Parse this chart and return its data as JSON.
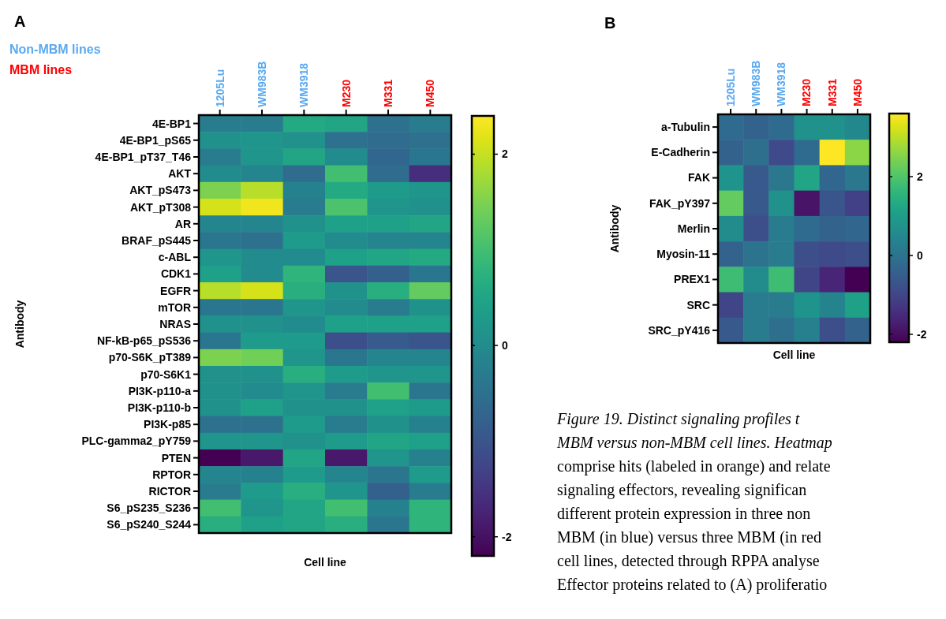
{
  "chart_data": [
    {
      "type": "heatmap",
      "title": "A",
      "xlabel": "Cell line",
      "ylabel": "Antibody",
      "annotations": [
        "Non-MBM lines",
        "MBM lines"
      ],
      "categories": [
        "1205Lu",
        "WM983B",
        "WM3918",
        "M230",
        "M331",
        "M450"
      ],
      "y_categories": [
        "4E-BP1",
        "4E-BP1_pS65",
        "4E-BP1_pT37_T46",
        "AKT",
        "AKT_pS473",
        "AKT_pT308",
        "AR",
        "BRAF_pS445",
        "c-ABL",
        "CDK1",
        "EGFR",
        "mTOR",
        "NRAS",
        "NF-kB-p65_pS536",
        "p70-S6K_pT389",
        "p70-S6K1",
        "PI3K-p110-a",
        "PI3K-p110-b",
        "PI3K-p85",
        "PLC-gamma2_pY759",
        "PTEN",
        "RPTOR",
        "RICTOR",
        "S6_pS235_S236",
        "S6_pS240_S244"
      ],
      "cells": [
        [
          -0.3,
          -0.3,
          0.6,
          0.5,
          -0.5,
          -0.3
        ],
        [
          0.1,
          0.2,
          0.1,
          -0.5,
          -0.6,
          -0.5
        ],
        [
          -0.3,
          0.2,
          0.5,
          0,
          -0.7,
          -0.4
        ],
        [
          0,
          -0.1,
          -0.6,
          1.0,
          -0.6,
          -1.6
        ],
        [
          1.5,
          1.9,
          -0.2,
          0.6,
          0.3,
          0.2
        ],
        [
          2.1,
          2.3,
          -0.3,
          1.1,
          0.2,
          0.1
        ],
        [
          -0.1,
          -0.1,
          0.1,
          0.4,
          0.4,
          0.5
        ],
        [
          -0.4,
          -0.5,
          0.3,
          0,
          -0.1,
          -0.1
        ],
        [
          0.2,
          0,
          0,
          0.4,
          0.5,
          0.6
        ],
        [
          0.4,
          0,
          0.8,
          -1.0,
          -0.8,
          -0.4
        ],
        [
          1.9,
          2.1,
          0.7,
          0.1,
          0.7,
          1.3
        ],
        [
          -0.4,
          -0.4,
          0.2,
          0,
          -0.3,
          0.1
        ],
        [
          0.1,
          0.1,
          0,
          0.4,
          0.4,
          0.4
        ],
        [
          -0.4,
          0.3,
          0.3,
          -1.1,
          -0.9,
          -1.0
        ],
        [
          1.5,
          1.4,
          0.2,
          -0.4,
          -0.1,
          -0.1
        ],
        [
          0.1,
          0.1,
          0.7,
          0.3,
          0.2,
          0.2
        ],
        [
          0.1,
          0,
          0.2,
          -0.3,
          1.0,
          -0.4
        ],
        [
          0.1,
          0.4,
          0.1,
          0.1,
          0.4,
          0.3
        ],
        [
          -0.5,
          -0.5,
          0.3,
          -0.3,
          0.1,
          -0.2
        ],
        [
          0.2,
          0.2,
          0.1,
          0.3,
          0.5,
          0.4
        ],
        [
          -2.2,
          -1.9,
          0.5,
          -1.9,
          0.2,
          -0.2
        ],
        [
          -0.1,
          -0.2,
          0.3,
          -0.1,
          -0.4,
          0.3
        ],
        [
          -0.3,
          0.3,
          0.7,
          0.2,
          -0.8,
          -0.3
        ],
        [
          1.0,
          0.2,
          0.5,
          1.0,
          -0.2,
          0.8
        ],
        [
          0.7,
          0.4,
          0.5,
          0.7,
          -0.4,
          0.8
        ]
      ],
      "clim": [
        -2.2,
        2.4
      ],
      "cticks": [
        2,
        0,
        -2
      ]
    },
    {
      "type": "heatmap",
      "title": "B",
      "xlabel": "Cell line",
      "ylabel": "Antibody",
      "annotations": [
        "Figure 19. Distinct signaling profiles t",
        "MBM versus non-MBM cell lines. Heatmap",
        "comprise hits (labeled in orange) and relate",
        "signaling effectors, revealing significan",
        "different protein expression in three non",
        "MBM (in blue) versus three MBM (in red",
        "cell lines, detected through RPPA analyse",
        "Effector proteins related to (A) proliferatio"
      ],
      "categories": [
        "1205Lu",
        "WM983B",
        "WM3918",
        "M230",
        "M331",
        "M450"
      ],
      "y_categories": [
        "a-Tubulin",
        "E-Cadherin",
        "FAK",
        "FAK_pY397",
        "Merlin",
        "Myosin-11",
        "PREX1",
        "SRC",
        "SRC_pY416"
      ],
      "cells": [
        [
          -0.2,
          -0.4,
          -0.2,
          0.7,
          0.7,
          0.5
        ],
        [
          -0.4,
          -0.1,
          -0.9,
          -0.2,
          3.6,
          2.6
        ],
        [
          0.8,
          -0.6,
          0.1,
          1.2,
          -0.3,
          0.1
        ],
        [
          2.2,
          -0.6,
          0.7,
          -1.9,
          -0.7,
          -1.1
        ],
        [
          0.6,
          -0.8,
          0.2,
          -0.2,
          -0.4,
          -0.3
        ],
        [
          -0.4,
          0,
          0.2,
          -0.8,
          -0.9,
          -0.8
        ],
        [
          1.8,
          0.6,
          1.8,
          -1.0,
          -1.6,
          -2.2
        ],
        [
          -1.0,
          0.2,
          0.2,
          0.8,
          0.4,
          1.1
        ],
        [
          -0.6,
          0.2,
          -0.1,
          0.3,
          -0.8,
          -0.4
        ]
      ],
      "clim": [
        -2.2,
        3.6
      ],
      "cticks": [
        2,
        0,
        -2
      ]
    }
  ]
}
